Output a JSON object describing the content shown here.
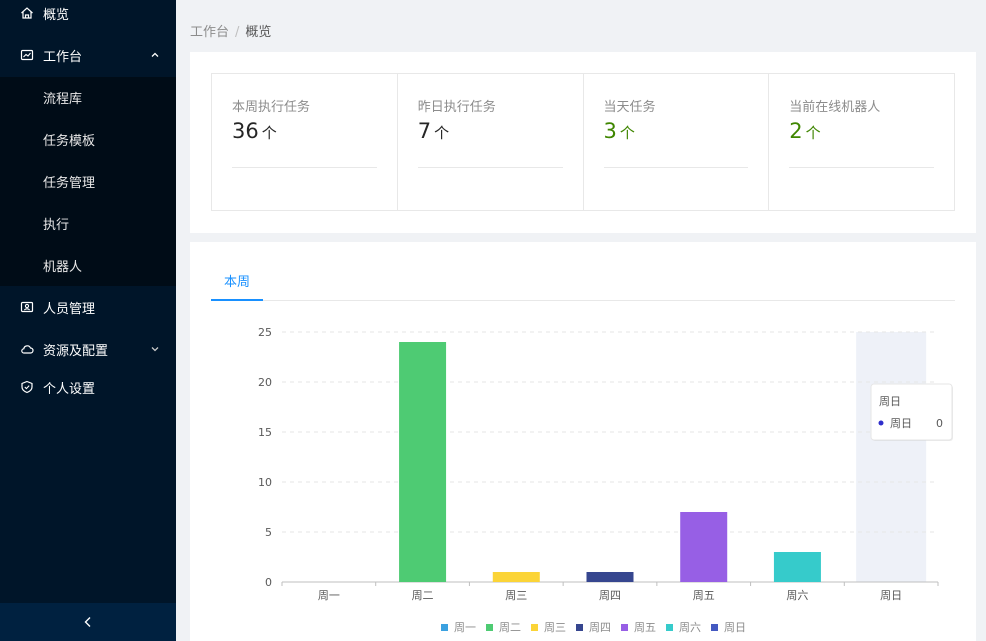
{
  "sidebar": {
    "items": [
      {
        "label": "概览",
        "icon": "home-icon"
      },
      {
        "label": "工作台",
        "icon": "dashboard-icon",
        "expanded": true
      },
      {
        "label": "人员管理",
        "icon": "user-card-icon"
      },
      {
        "label": "资源及配置",
        "icon": "cloud-icon"
      },
      {
        "label": "个人设置",
        "icon": "shield-icon"
      }
    ],
    "submenu": [
      {
        "label": "流程库"
      },
      {
        "label": "任务模板"
      },
      {
        "label": "任务管理"
      },
      {
        "label": "执行"
      },
      {
        "label": "机器人"
      }
    ],
    "collapse_icon": "chevron-left-icon"
  },
  "breadcrumb": {
    "root": "工作台",
    "separator": "/",
    "current": "概览"
  },
  "stats": [
    {
      "title": "本周执行任务",
      "value": "36",
      "unit": "个",
      "color": "#262626"
    },
    {
      "title": "昨日执行任务",
      "value": "7",
      "unit": "个",
      "color": "#262626"
    },
    {
      "title": "当天任务",
      "value": "3",
      "unit": "个",
      "color": "#3f8600"
    },
    {
      "title": "当前在线机器人",
      "value": "2",
      "unit": "个",
      "color": "#3f8600"
    }
  ],
  "tabs": [
    {
      "label": "本周",
      "active": true
    }
  ],
  "chart_data": {
    "type": "bar",
    "categories": [
      "周一",
      "周二",
      "周三",
      "周四",
      "周五",
      "周六",
      "周日"
    ],
    "values": [
      0,
      24,
      1,
      1,
      7,
      3,
      0
    ],
    "colors": [
      "#3ba1e0",
      "#4ecb73",
      "#fbd437",
      "#36468f",
      "#975fe5",
      "#36cbcb",
      "#4459c1"
    ],
    "ylim": [
      0,
      25
    ],
    "yticks": [
      0,
      5,
      10,
      15,
      20,
      25
    ],
    "grid": true,
    "legend": {
      "placement": "bottom",
      "entries": [
        "周一",
        "周二",
        "周三",
        "周四",
        "周五",
        "周六",
        "周日"
      ]
    },
    "highlight_index": 6,
    "tooltip": {
      "title": "周日",
      "series_name": "周日",
      "value": "0",
      "dot_color": "#2f2ecb"
    }
  }
}
